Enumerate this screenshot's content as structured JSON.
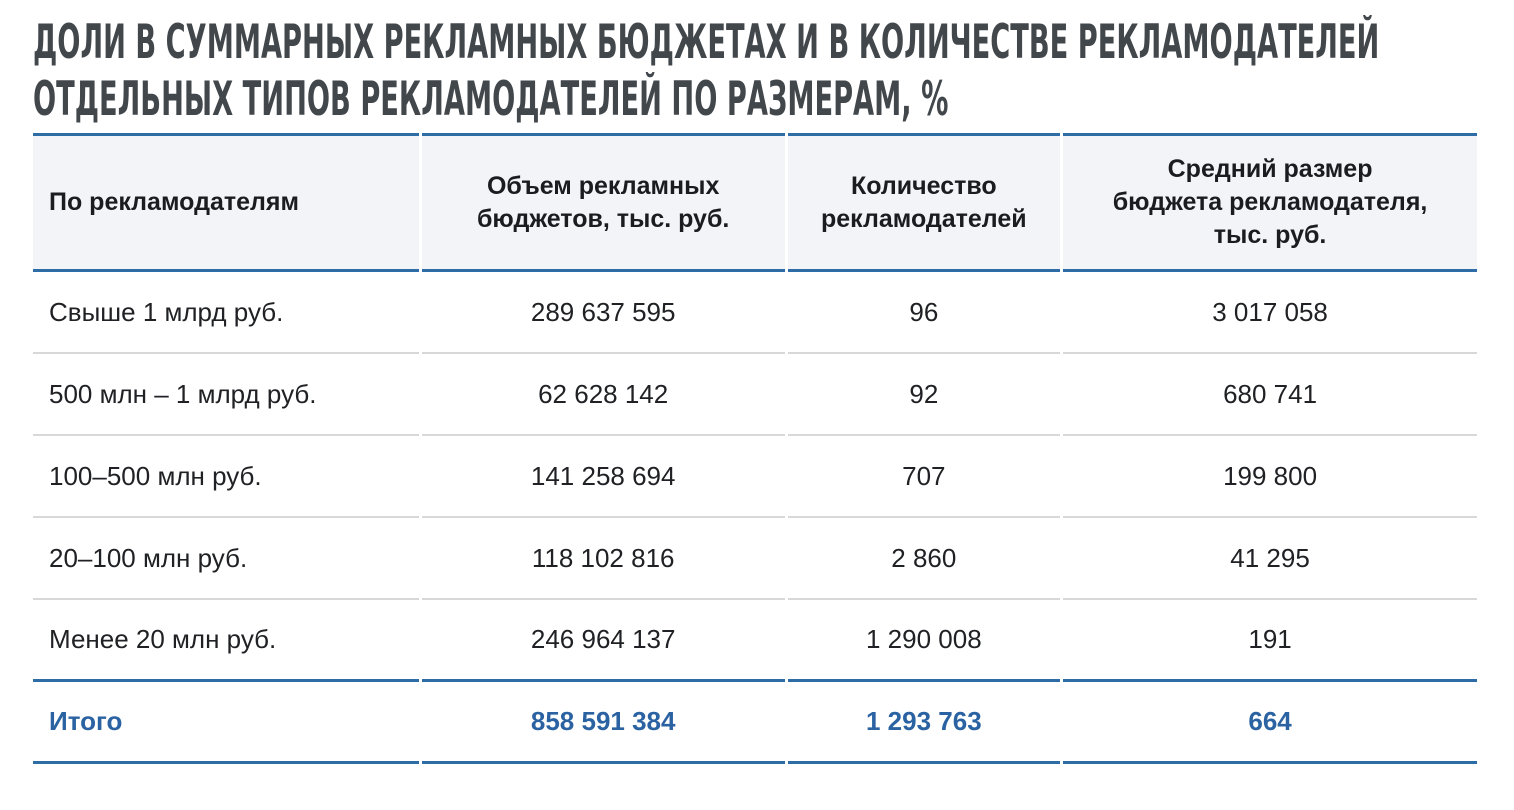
{
  "title": {
    "lines": [
      "ДОЛИ В СУММАРНЫХ РЕКЛАМНЫХ БЮДЖЕТАХ И В КОЛИЧЕСТВЕ РЕКЛАМОДАТЕЛЕЙ",
      "ОТДЕЛЬНЫХ ТИПОВ РЕКЛАМОДАТЕЛЕЙ ПО РАЗМЕРАМ, %"
    ]
  },
  "colors": {
    "accent_blue": "#2e6ca6",
    "total_blue": "#2a62a2",
    "title_text": "#42474c",
    "header_bg": "#f2f4f8",
    "header_text": "#1a1c1f",
    "body_text": "#202124",
    "divider_gray": "#d8d8d8"
  },
  "table": {
    "headers": [
      {
        "lines": [
          "По рекламодателям"
        ]
      },
      {
        "lines": [
          "Объем рекламных",
          "бюджетов, тыс. руб."
        ]
      },
      {
        "lines": [
          "Количество",
          "рекламодателей"
        ]
      },
      {
        "lines": [
          "Средний размер",
          "бюджета рекламодателя,",
          "тыс. руб."
        ]
      }
    ],
    "rows": [
      {
        "label": "Свыше 1 млрд руб.",
        "budget": "289 637 595",
        "advertisers": "96",
        "avg_budget": "3 017 058"
      },
      {
        "label": "500 млн – 1 млрд руб.",
        "budget": "62 628 142",
        "advertisers": "92",
        "avg_budget": "680 741"
      },
      {
        "label": "100–500 млн руб.",
        "budget": "141 258 694",
        "advertisers": "707",
        "avg_budget": "199 800"
      },
      {
        "label": "20–100 млн руб.",
        "budget": "118 102 816",
        "advertisers": "2 860",
        "avg_budget": "41 295"
      },
      {
        "label": "Менее 20 млн руб.",
        "budget": "246 964 137",
        "advertisers": "1 290 008",
        "avg_budget": "191"
      }
    ],
    "total": {
      "label": "Итого",
      "budget": "858 591 384",
      "advertisers": "1 293 763",
      "avg_budget": "664"
    }
  }
}
